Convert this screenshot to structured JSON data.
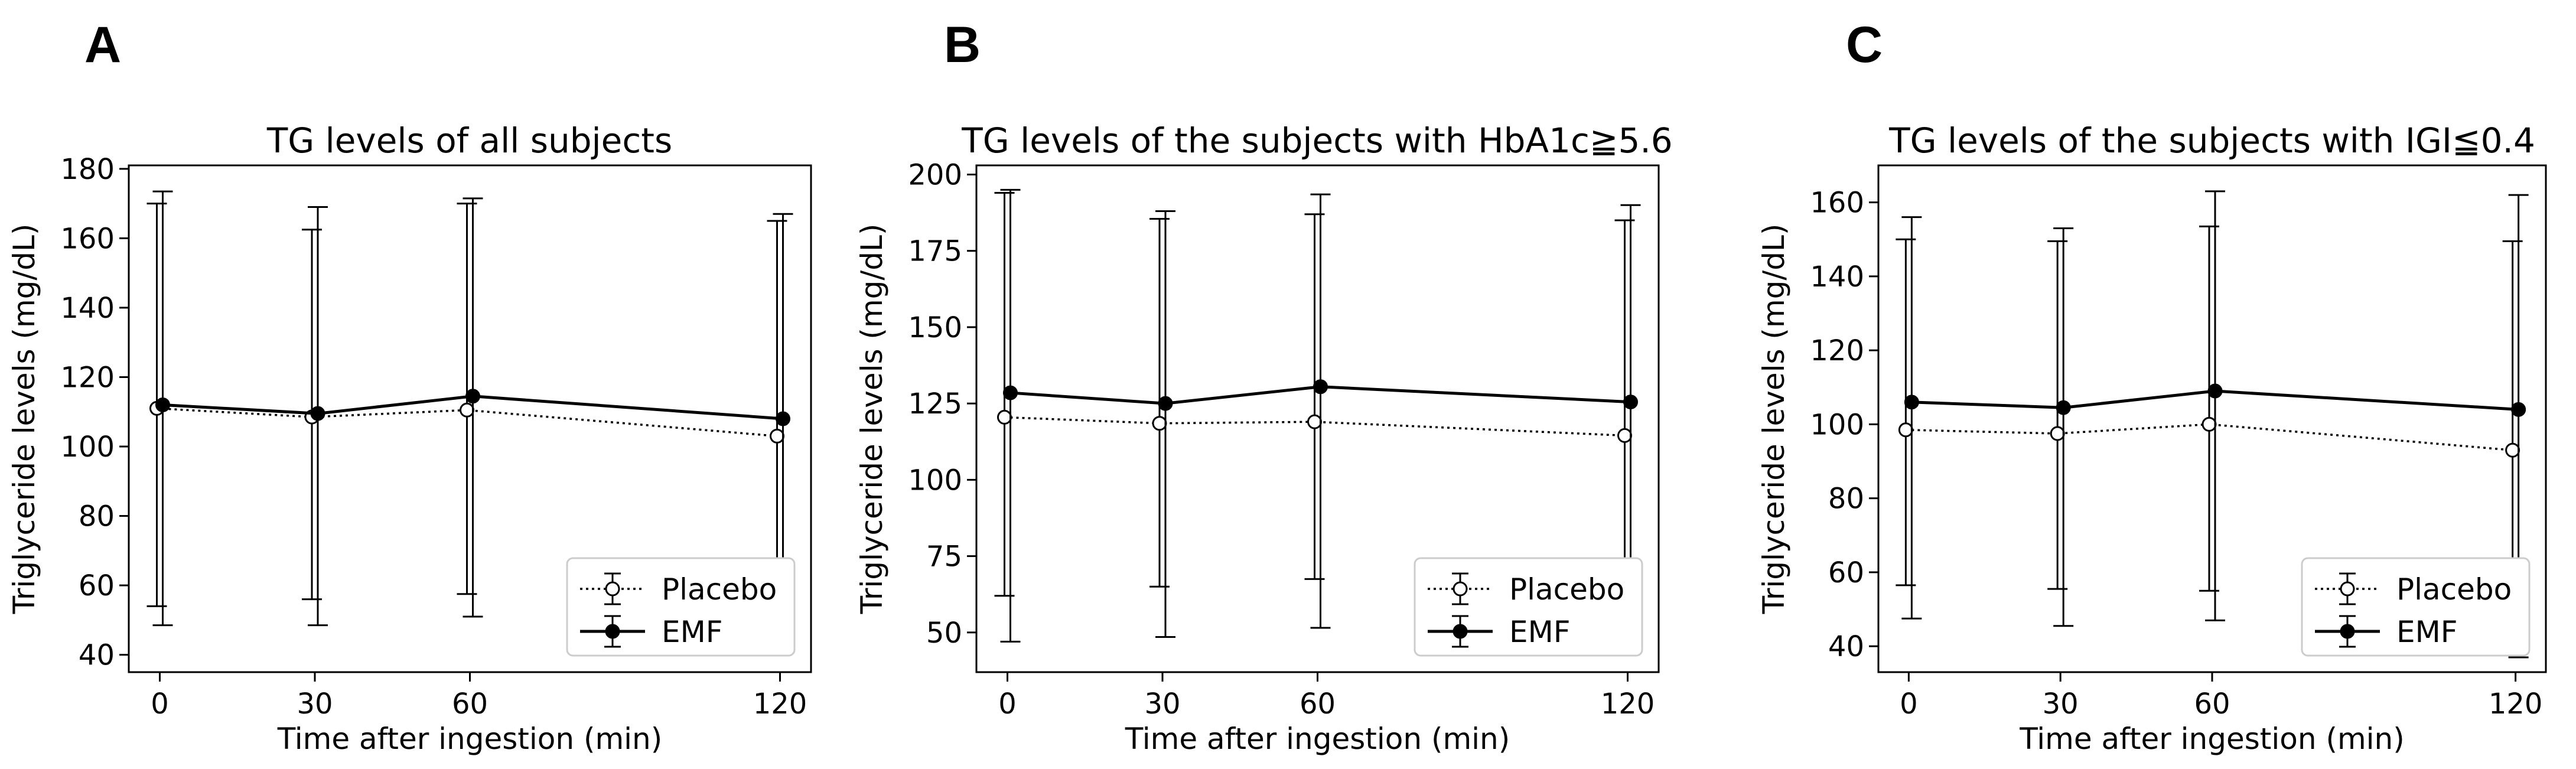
{
  "chart_data": [
    {
      "panel": "A",
      "type": "line",
      "title": "TG levels of all subjects",
      "xlabel": "Time after ingestion (min)",
      "ylabel": "Triglyceride levels (mg/dL)",
      "x": [
        0,
        30,
        60,
        120
      ],
      "x_ticks": [
        "0",
        "30",
        "60",
        "120"
      ],
      "xlim": [
        -6,
        126
      ],
      "ylim": [
        35,
        181
      ],
      "y_ticks": [
        40,
        60,
        80,
        100,
        120,
        140,
        160,
        180
      ],
      "legend_position": "lower-right",
      "series": [
        {
          "name": "Placebo",
          "style": "dotted",
          "marker": "open-circle",
          "color": "#000000",
          "values": [
            111,
            108.5,
            110.5,
            103
          ],
          "err_low": [
            54,
            56,
            57.5,
            49.5
          ],
          "err_high": [
            170,
            162.5,
            170,
            165
          ]
        },
        {
          "name": "EMF",
          "style": "solid",
          "marker": "filled-circle",
          "color": "#000000",
          "values": [
            112,
            109.5,
            114.5,
            108
          ],
          "err_low": [
            48.5,
            48.5,
            51,
            41
          ],
          "err_high": [
            173.5,
            169,
            171.5,
            167
          ]
        }
      ]
    },
    {
      "panel": "B",
      "type": "line",
      "title": "TG levels of the subjects with HbA1c≧5.6",
      "xlabel": "Time after ingestion (min)",
      "ylabel": "Triglyceride levels (mg/dL)",
      "x": [
        0,
        30,
        60,
        120
      ],
      "x_ticks": [
        "0",
        "30",
        "60",
        "120"
      ],
      "xlim": [
        -6,
        126
      ],
      "ylim": [
        37,
        203
      ],
      "y_ticks": [
        50,
        75,
        100,
        125,
        150,
        175,
        200
      ],
      "legend_position": "lower-right",
      "series": [
        {
          "name": "Placebo",
          "style": "dotted",
          "marker": "open-circle",
          "color": "#000000",
          "values": [
            120.5,
            118.5,
            119,
            114.5
          ],
          "err_low": [
            62,
            65,
            67.5,
            61.5
          ],
          "err_high": [
            194,
            185.5,
            187,
            185
          ]
        },
        {
          "name": "EMF",
          "style": "solid",
          "marker": "filled-circle",
          "color": "#000000",
          "values": [
            128.5,
            125,
            130.5,
            125.5
          ],
          "err_low": [
            47,
            48.5,
            51.5,
            44.5
          ],
          "err_high": [
            195,
            188,
            193.5,
            190
          ]
        }
      ]
    },
    {
      "panel": "C",
      "type": "line",
      "title": "TG levels of the subjects with IGI≦0.4",
      "xlabel": "Time after ingestion (min)",
      "ylabel": "Triglyceride levels (mg/dL)",
      "x": [
        0,
        30,
        60,
        120
      ],
      "x_ticks": [
        "0",
        "30",
        "60",
        "120"
      ],
      "xlim": [
        -6,
        126
      ],
      "ylim": [
        33,
        170
      ],
      "y_ticks": [
        40,
        60,
        80,
        100,
        120,
        140,
        160
      ],
      "legend_position": "lower-right",
      "series": [
        {
          "name": "Placebo",
          "style": "dotted",
          "marker": "open-circle",
          "color": "#000000",
          "values": [
            98.5,
            97.5,
            100,
            93
          ],
          "err_low": [
            56.5,
            55.5,
            55,
            45.5
          ],
          "err_high": [
            150,
            149.5,
            153.5,
            149.5
          ]
        },
        {
          "name": "EMF",
          "style": "solid",
          "marker": "filled-circle",
          "color": "#000000",
          "values": [
            106,
            104.5,
            109,
            104
          ],
          "err_low": [
            47.5,
            45.5,
            47,
            37
          ],
          "err_high": [
            156,
            153,
            163,
            162
          ]
        }
      ]
    }
  ]
}
